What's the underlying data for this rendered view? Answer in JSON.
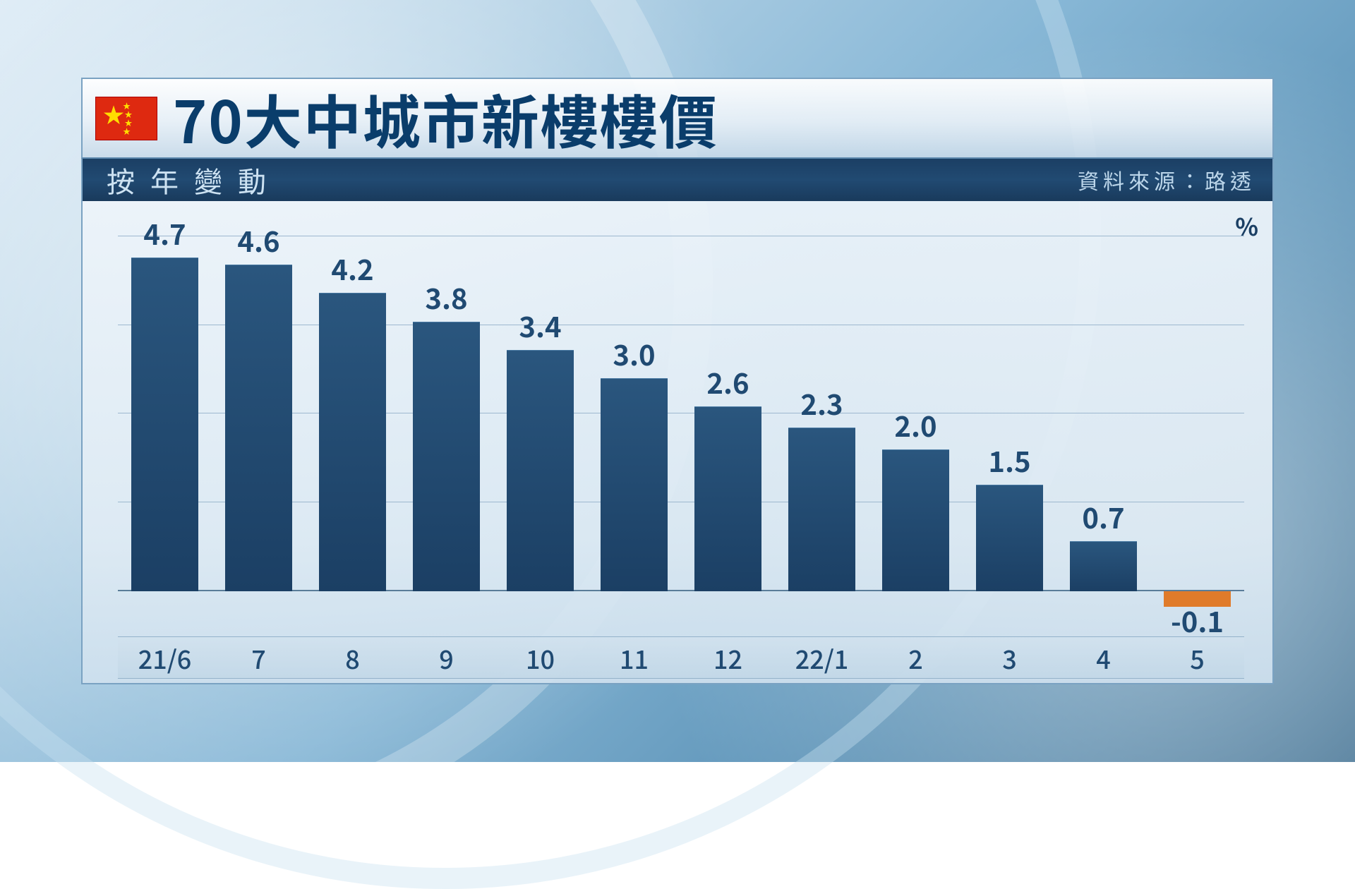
{
  "title": "70大中城市新樓樓價",
  "subtitle_left": "按年變動",
  "source_label": "資料來源：路透",
  "unit": "%",
  "chart": {
    "type": "bar",
    "ylim": [
      -0.5,
      5.0
    ],
    "gridlines_y": [
      1.25,
      2.5,
      3.75,
      5.0
    ],
    "baseline_y": 0,
    "xlabel_fontsize": 36,
    "value_fontsize": 40,
    "positive_bar_color_top": "#2a567e",
    "positive_bar_color_bottom": "#1b3f64",
    "negative_bar_color": "#e07b2a",
    "value_label_color": "#204a72",
    "grid_color": "#9db8cf",
    "bg_gradient_top": "#edf4fa",
    "bg_gradient_bottom": "#cee0ee",
    "bar_width_ratio": 0.72,
    "bars": [
      {
        "label": "21/6",
        "value": 4.7
      },
      {
        "label": "7",
        "value": 4.6
      },
      {
        "label": "8",
        "value": 4.2
      },
      {
        "label": "9",
        "value": 3.8
      },
      {
        "label": "10",
        "value": 3.4
      },
      {
        "label": "11",
        "value": 3.0
      },
      {
        "label": "12",
        "value": 2.6
      },
      {
        "label": "22/1",
        "value": 2.3
      },
      {
        "label": "2",
        "value": 2.0
      },
      {
        "label": "3",
        "value": 1.5
      },
      {
        "label": "4",
        "value": 0.7
      },
      {
        "label": "5",
        "value": -0.1
      }
    ]
  },
  "flag": {
    "country": "china",
    "bg": "#de2910",
    "star_color": "#ffde00"
  }
}
